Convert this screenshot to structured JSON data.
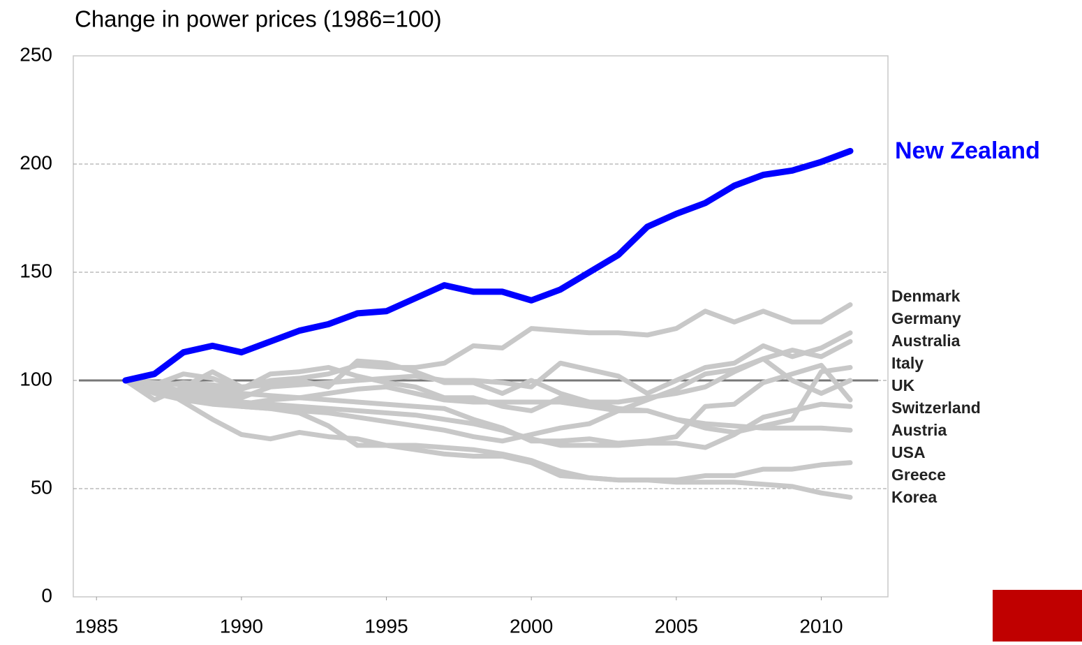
{
  "chart_data": {
    "type": "line",
    "title": "Change in power prices (1986=100)",
    "x": [
      1986,
      1987,
      1988,
      1989,
      1990,
      1991,
      1992,
      1993,
      1994,
      1995,
      1996,
      1997,
      1998,
      1999,
      2000,
      2001,
      2002,
      2003,
      2004,
      2005,
      2006,
      2007,
      2008,
      2009,
      2010,
      2011
    ],
    "xlim": [
      1984.2,
      2012.3
    ],
    "xticks": [
      1985,
      1990,
      1995,
      2000,
      2005,
      2010
    ],
    "ylim": [
      0,
      250
    ],
    "yticks": [
      0,
      50,
      100,
      150,
      200,
      250
    ],
    "grid": true,
    "reference_line": 100,
    "series": [
      {
        "name": "Denmark",
        "color": "#c8c8c8",
        "values": [
          100,
          97,
          99,
          98,
          96,
          100,
          101,
          103,
          107,
          106,
          106,
          108,
          116,
          115,
          124,
          123,
          122,
          122,
          121,
          124,
          132,
          127,
          132,
          127,
          127,
          135
        ]
      },
      {
        "name": "Germany",
        "color": "#c8c8c8",
        "values": [
          100,
          95,
          96,
          94,
          92,
          97,
          98,
          99,
          100,
          101,
          102,
          100,
          100,
          99,
          97,
          108,
          105,
          102,
          94,
          100,
          106,
          108,
          116,
          111,
          115,
          122
        ]
      },
      {
        "name": "Australia",
        "color": "#c8c8c8",
        "values": [
          100,
          98,
          103,
          101,
          96,
          103,
          104,
          106,
          102,
          99,
          97,
          92,
          92,
          88,
          86,
          92,
          90,
          90,
          92,
          94,
          97,
          104,
          110,
          114,
          111,
          118
        ]
      },
      {
        "name": "Italy",
        "color": "#c8c8c8",
        "values": [
          100,
          91,
          97,
          104,
          97,
          98,
          100,
          97,
          109,
          108,
          104,
          99,
          99,
          94,
          100,
          94,
          90,
          87,
          86,
          82,
          78,
          76,
          79,
          82,
          104,
          106
        ]
      },
      {
        "name": "UK",
        "color": "#c8c8c8",
        "values": [
          100,
          96,
          93,
          90,
          88,
          87,
          86,
          85,
          83,
          81,
          79,
          77,
          74,
          72,
          75,
          78,
          80,
          86,
          91,
          96,
          103,
          105,
          110,
          100,
          94,
          100
        ]
      },
      {
        "name": "Switzerland",
        "color": "#c8c8c8",
        "values": [
          100,
          99,
          98,
          96,
          94,
          93,
          92,
          91,
          90,
          89,
          88,
          87,
          82,
          78,
          72,
          72,
          73,
          71,
          72,
          74,
          88,
          89,
          99,
          103,
          107,
          91
        ]
      },
      {
        "name": "Austria",
        "color": "#c8c8c8",
        "values": [
          100,
          98,
          95,
          92,
          90,
          89,
          88,
          87,
          86,
          85,
          84,
          82,
          80,
          77,
          73,
          70,
          70,
          70,
          71,
          71,
          69,
          75,
          83,
          86,
          89,
          88
        ]
      },
      {
        "name": "USA",
        "color": "#c8c8c8",
        "values": [
          100,
          97,
          94,
          91,
          89,
          91,
          92,
          94,
          96,
          97,
          94,
          91,
          90,
          90,
          90,
          90,
          88,
          86,
          86,
          82,
          80,
          79,
          78,
          78,
          78,
          77
        ]
      },
      {
        "name": "Greece",
        "color": "#c8c8c8",
        "values": [
          100,
          98,
          90,
          82,
          75,
          73,
          76,
          74,
          73,
          70,
          68,
          66,
          65,
          65,
          62,
          56,
          55,
          54,
          54,
          54,
          56,
          56,
          59,
          59,
          61,
          62
        ]
      },
      {
        "name": "Korea",
        "color": "#c8c8c8",
        "values": [
          100,
          94,
          91,
          89,
          88,
          87,
          85,
          79,
          70,
          70,
          70,
          69,
          68,
          66,
          63,
          58,
          55,
          54,
          54,
          53,
          53,
          53,
          52,
          51,
          48,
          46
        ]
      },
      {
        "name": "New Zealand",
        "color": "#0000ff",
        "values": [
          100,
          103,
          113,
          116,
          113,
          118,
          123,
          126,
          131,
          132,
          138,
          144,
          141,
          141,
          137,
          142,
          150,
          158,
          171,
          177,
          182,
          190,
          195,
          197,
          201,
          206
        ]
      }
    ]
  }
}
